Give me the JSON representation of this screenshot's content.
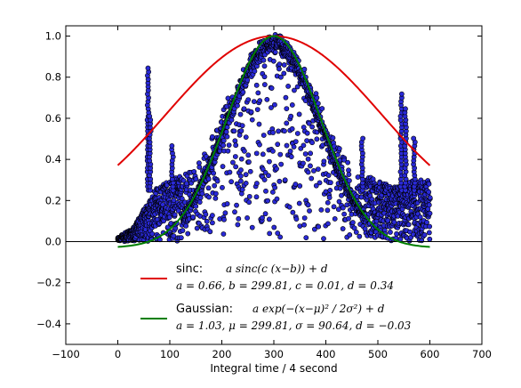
{
  "chart_data": {
    "type": "scatter",
    "title": "",
    "xlabel": "Integral time / 4 second",
    "ylabel": "",
    "xlim": [
      -100,
      700
    ],
    "ylim": [
      -0.5,
      1.05
    ],
    "xticks": [
      -100,
      0,
      100,
      200,
      300,
      400,
      500,
      600,
      700
    ],
    "xtick_labels": [
      "−100",
      "0",
      "100",
      "200",
      "300",
      "400",
      "500",
      "600",
      "700"
    ],
    "yticks": [
      -0.4,
      -0.2,
      0.0,
      0.2,
      0.4,
      0.6,
      0.8,
      1.0
    ],
    "ytick_labels": [
      "−0.4",
      "−0.2",
      "0.0",
      "0.2",
      "0.4",
      "0.6",
      "0.8",
      "1.0"
    ],
    "grid": false,
    "legend_position": "lower-center",
    "zero_line": true,
    "points": {
      "color": "#2a2ad8",
      "edge_color": "#000000",
      "x_range": [
        0,
        600
      ],
      "profile": [
        [
          0,
          0.02
        ],
        [
          30,
          0.07
        ],
        [
          50,
          0.16
        ],
        [
          70,
          0.25
        ],
        [
          90,
          0.29
        ],
        [
          110,
          0.31
        ],
        [
          130,
          0.33
        ],
        [
          150,
          0.37
        ],
        [
          170,
          0.44
        ],
        [
          200,
          0.62
        ],
        [
          230,
          0.81
        ],
        [
          260,
          0.94
        ],
        [
          280,
          0.99
        ],
        [
          300,
          1.0
        ],
        [
          320,
          0.99
        ],
        [
          340,
          0.94
        ],
        [
          370,
          0.81
        ],
        [
          400,
          0.62
        ],
        [
          430,
          0.44
        ],
        [
          450,
          0.37
        ],
        [
          470,
          0.33
        ],
        [
          490,
          0.31
        ],
        [
          510,
          0.29
        ],
        [
          530,
          0.27
        ],
        [
          550,
          0.28
        ],
        [
          570,
          0.3
        ],
        [
          600,
          0.3
        ]
      ],
      "spikes": [
        {
          "x": 58,
          "ymax": 0.86
        },
        {
          "x": 62,
          "ymax": 0.62
        },
        {
          "x": 105,
          "ymax": 0.48
        },
        {
          "x": 470,
          "ymax": 0.52
        },
        {
          "x": 545,
          "ymax": 0.72
        },
        {
          "x": 553,
          "ymax": 0.65
        },
        {
          "x": 570,
          "ymax": 0.52
        }
      ]
    },
    "series": [
      {
        "name": "sinc:",
        "formula": "a sinc(c (x−b)) + d",
        "params": "a = 0.66,  b = 299.81,  c = 0.01,  d = 0.34",
        "model": "sinc",
        "a": 0.66,
        "b": 299.81,
        "c": 0.01,
        "d": 0.34,
        "color": "#e00000"
      },
      {
        "name": "Gaussian:",
        "formula": "a exp(−(x−μ)² / 2σ²) + d",
        "params": "a = 1.03,  μ = 299.81,  σ = 90.64,  d = −0.03",
        "model": "gaussian",
        "a": 1.03,
        "mu": 299.81,
        "sigma": 90.64,
        "d": -0.03,
        "color": "#007f00"
      }
    ]
  }
}
